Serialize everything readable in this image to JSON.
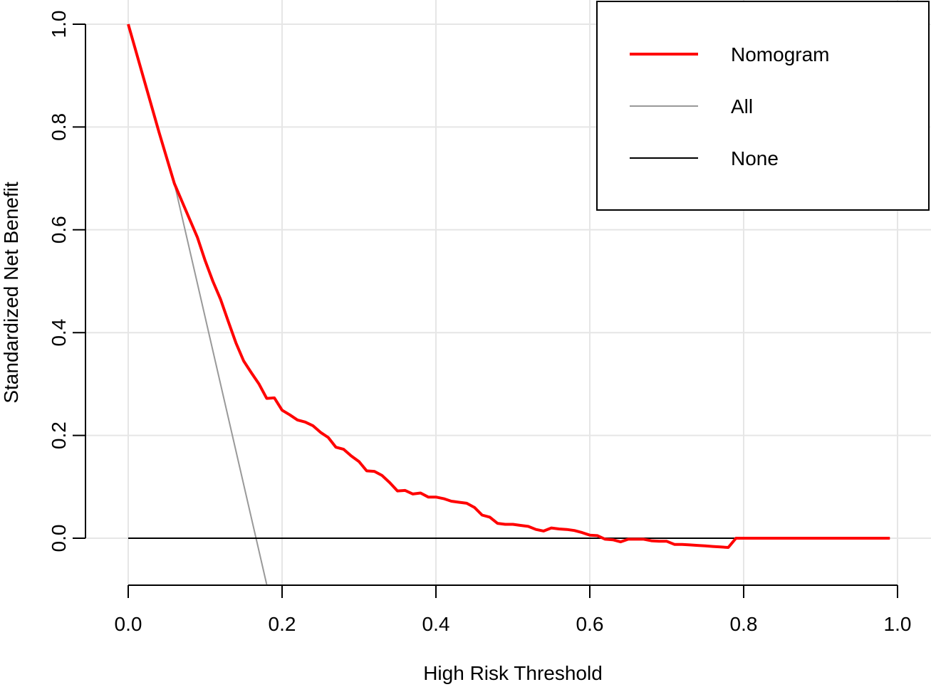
{
  "chart_data": {
    "type": "line",
    "title": "",
    "xlabel": "High Risk Threshold",
    "ylabel": "Standardized Net Benefit",
    "xlim": [
      0,
      1
    ],
    "ylim": [
      -0.09,
      1.0
    ],
    "x_ticks": [
      0.0,
      0.2,
      0.4,
      0.6,
      0.8,
      1.0
    ],
    "x_tick_labels": [
      "0.0",
      "0.2",
      "0.4",
      "0.6",
      "0.8",
      "1.0"
    ],
    "y_ticks": [
      0.0,
      0.2,
      0.4,
      0.6,
      0.8,
      1.0
    ],
    "y_tick_labels": [
      "0.0",
      "0.2",
      "0.4",
      "0.6",
      "0.8",
      "1.0"
    ],
    "grid": true,
    "legend_position": "top-right",
    "series": [
      {
        "name": "Nomogram",
        "color": "#ff0000",
        "x": [
          0.0,
          0.02,
          0.04,
          0.06,
          0.07,
          0.08,
          0.09,
          0.1,
          0.11,
          0.12,
          0.13,
          0.14,
          0.15,
          0.16,
          0.17,
          0.18,
          0.19,
          0.2,
          0.21,
          0.22,
          0.23,
          0.24,
          0.25,
          0.26,
          0.27,
          0.28,
          0.29,
          0.3,
          0.31,
          0.32,
          0.33,
          0.34,
          0.35,
          0.36,
          0.37,
          0.38,
          0.39,
          0.4,
          0.41,
          0.42,
          0.43,
          0.44,
          0.45,
          0.46,
          0.47,
          0.48,
          0.49,
          0.5,
          0.51,
          0.52,
          0.53,
          0.54,
          0.55,
          0.56,
          0.57,
          0.58,
          0.59,
          0.6,
          0.61,
          0.62,
          0.63,
          0.64,
          0.65,
          0.66,
          0.67,
          0.68,
          0.69,
          0.7,
          0.71,
          0.72,
          0.73,
          0.74,
          0.75,
          0.76,
          0.77,
          0.78,
          0.79,
          0.8,
          0.85,
          0.9,
          0.95,
          0.99
        ],
        "y": [
          1.0,
          0.895,
          0.79,
          0.69,
          0.655,
          0.62,
          0.585,
          0.54,
          0.5,
          0.465,
          0.422,
          0.38,
          0.345,
          0.322,
          0.3,
          0.272,
          0.273,
          0.249,
          0.24,
          0.23,
          0.226,
          0.219,
          0.206,
          0.196,
          0.177,
          0.173,
          0.16,
          0.149,
          0.131,
          0.13,
          0.122,
          0.108,
          0.092,
          0.093,
          0.086,
          0.088,
          0.08,
          0.08,
          0.077,
          0.072,
          0.07,
          0.068,
          0.06,
          0.045,
          0.041,
          0.029,
          0.027,
          0.027,
          0.025,
          0.023,
          0.017,
          0.014,
          0.02,
          0.018,
          0.017,
          0.015,
          0.011,
          0.006,
          0.005,
          -0.002,
          -0.003,
          -0.007,
          -0.002,
          -0.002,
          -0.002,
          -0.005,
          -0.006,
          -0.006,
          -0.012,
          -0.012,
          -0.013,
          -0.014,
          -0.015,
          -0.016,
          -0.017,
          -0.018,
          0.0,
          0.0,
          0.0,
          0.0,
          0.0,
          0.0
        ]
      },
      {
        "name": "All",
        "color": "#999999",
        "x": [
          0.0,
          0.06,
          0.18
        ],
        "y": [
          1.0,
          0.69,
          -0.09
        ]
      },
      {
        "name": "None",
        "color": "#000000",
        "x": [
          0.0,
          0.99
        ],
        "y": [
          0.0,
          0.0
        ]
      }
    ]
  }
}
